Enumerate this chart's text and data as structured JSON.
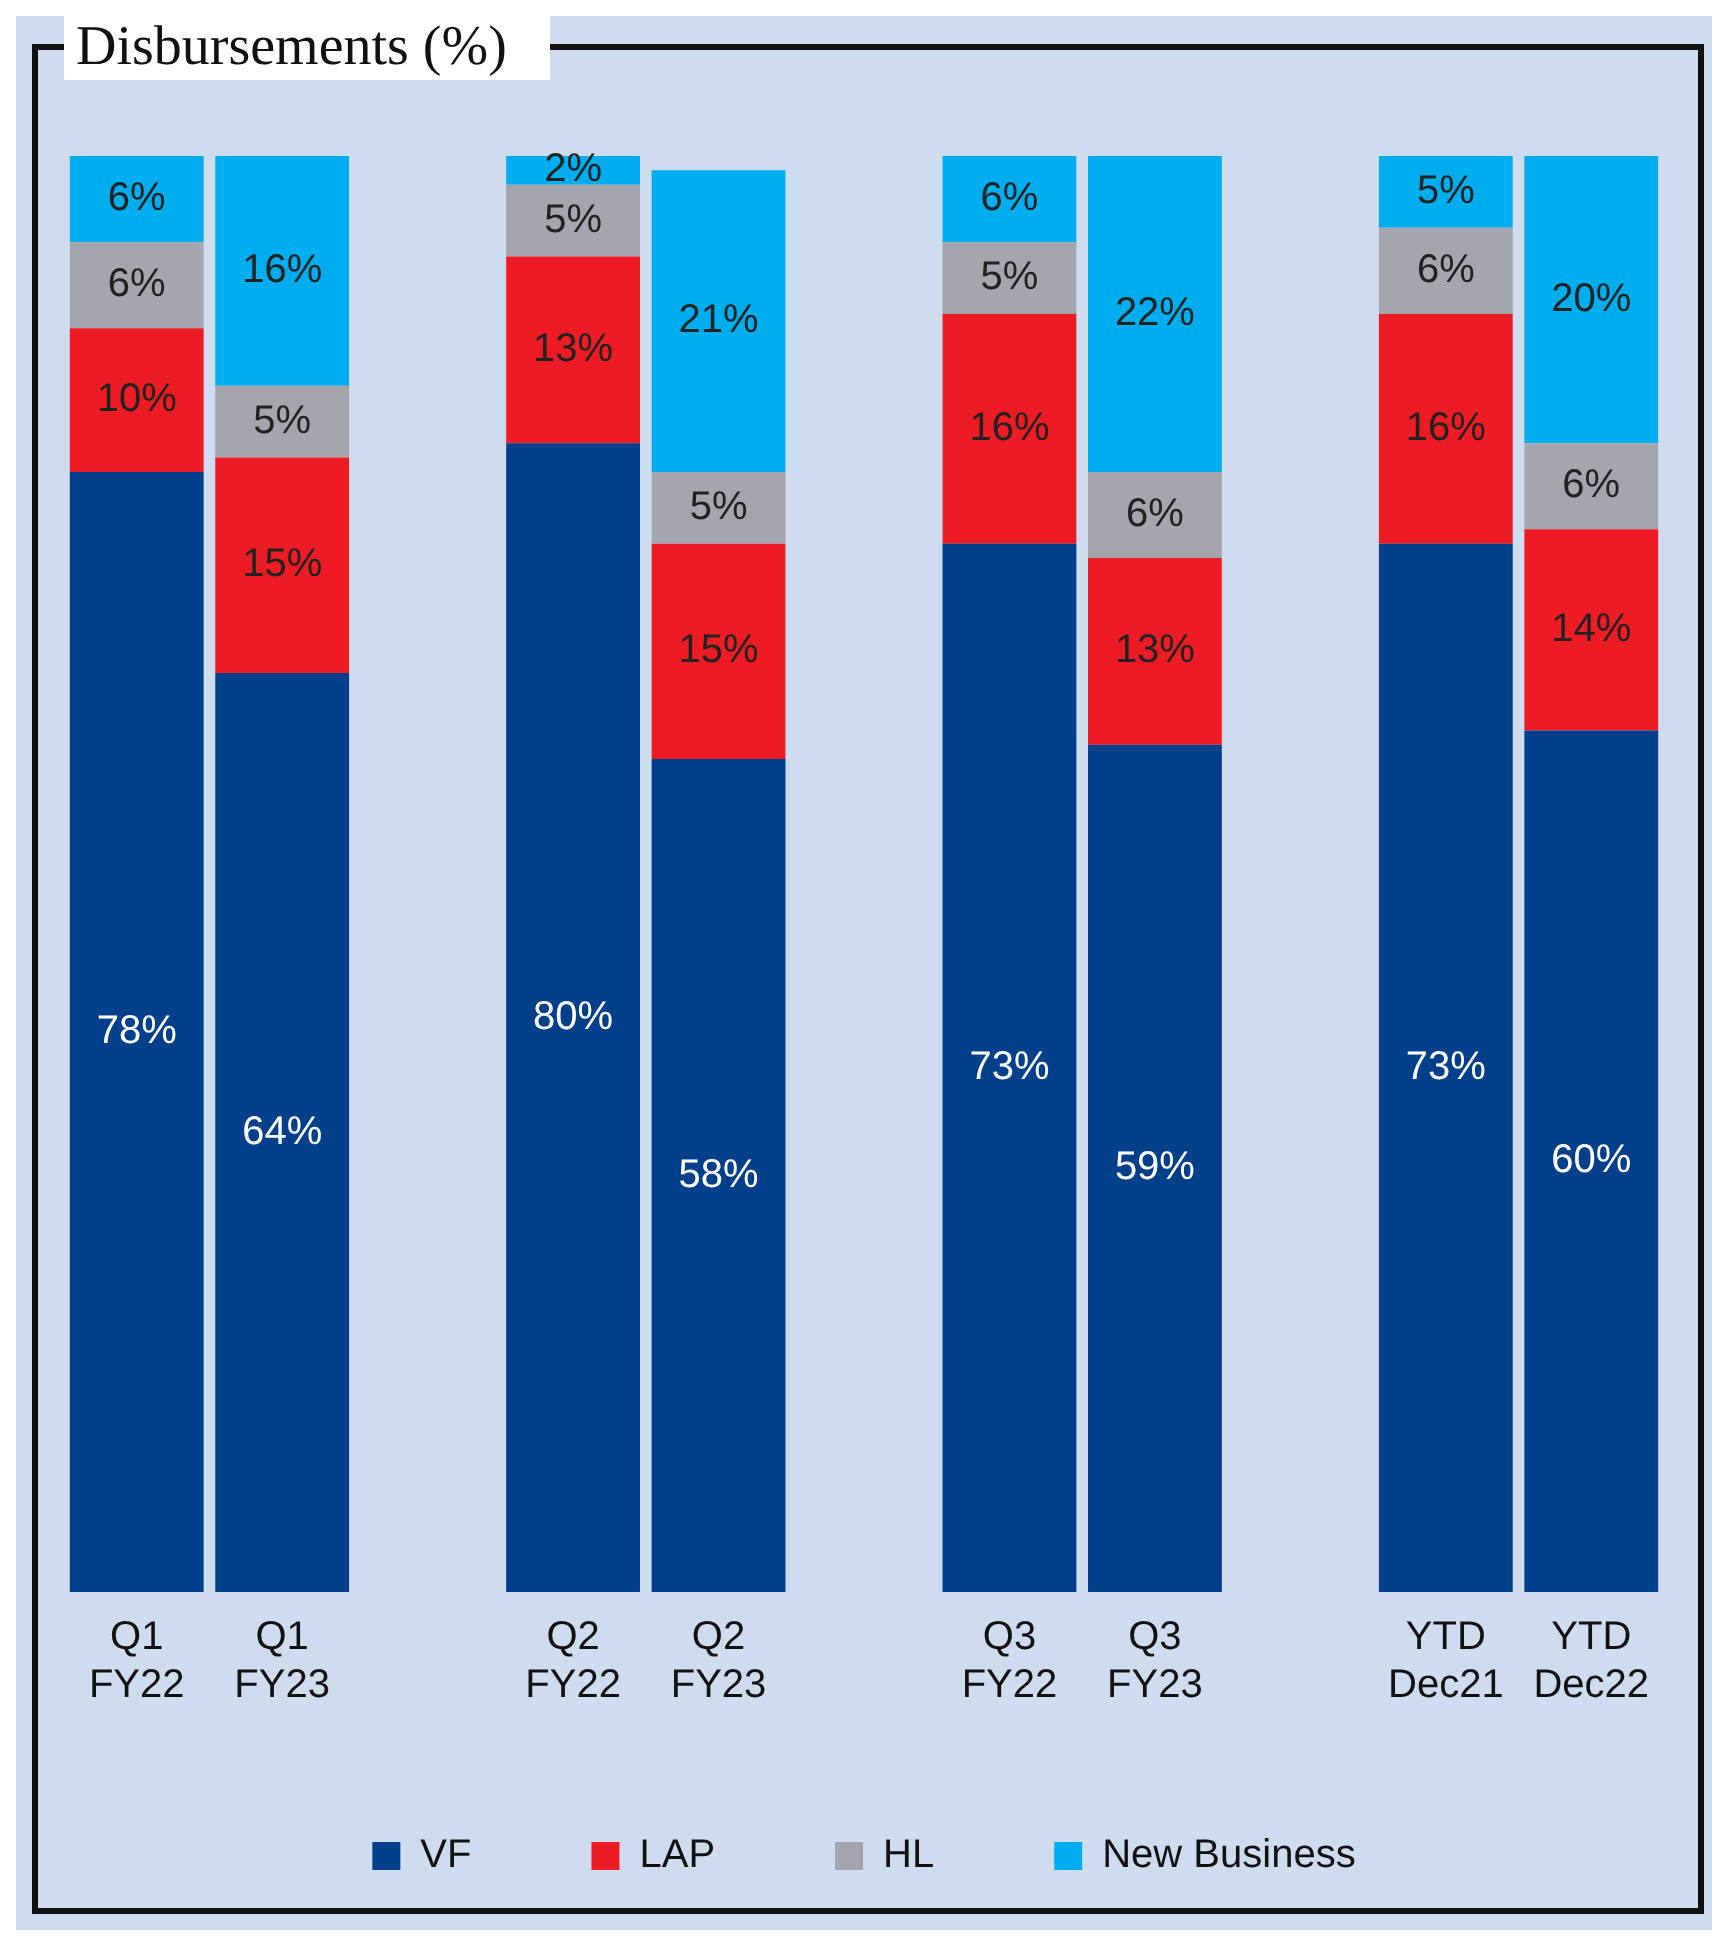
{
  "chart_data": {
    "type": "bar",
    "title": "Disbursements (%)",
    "stacked": true,
    "legend": "bottom",
    "grid": false,
    "categories": [
      "Q1 FY22",
      "Q1 FY23",
      null,
      "Q2 FY22",
      "Q2 FY23",
      null,
      "Q3 FY22",
      "Q3 FY23",
      null,
      "YTD Dec21",
      "YTD Dec22"
    ],
    "series": [
      {
        "name": "VF",
        "color": "#003f8a",
        "values": [
          78,
          64,
          null,
          80,
          58,
          null,
          73,
          59,
          null,
          73,
          60
        ],
        "value_labels": [
          "78%",
          "64%",
          null,
          "80%",
          "58%",
          null,
          "73%",
          "59%",
          null,
          "73%",
          "60%"
        ]
      },
      {
        "name": "LAP",
        "color": "#ed1c24",
        "values": [
          10,
          15,
          null,
          13,
          15,
          null,
          16,
          13,
          null,
          16,
          14
        ],
        "value_labels": [
          "10%",
          "15%",
          null,
          "13%",
          "15%",
          null,
          "16%",
          "13%",
          null,
          "16%",
          "14%"
        ]
      },
      {
        "name": "HL",
        "color": "#a5a5ae",
        "values": [
          6,
          5,
          null,
          5,
          5,
          null,
          5,
          6,
          null,
          6,
          6
        ],
        "value_labels": [
          "6%",
          "5%",
          null,
          "5%",
          "5%",
          null,
          "5%",
          "6%",
          null,
          "6%",
          "6%"
        ]
      },
      {
        "name": "New Business",
        "color": "#00aeef",
        "values": [
          6,
          16,
          null,
          2,
          21,
          null,
          6,
          22,
          null,
          5,
          20
        ],
        "value_labels": [
          "6%",
          "16%",
          null,
          "2%",
          "21%",
          null,
          "6%",
          "22%",
          null,
          "5%",
          "20%"
        ]
      }
    ]
  }
}
